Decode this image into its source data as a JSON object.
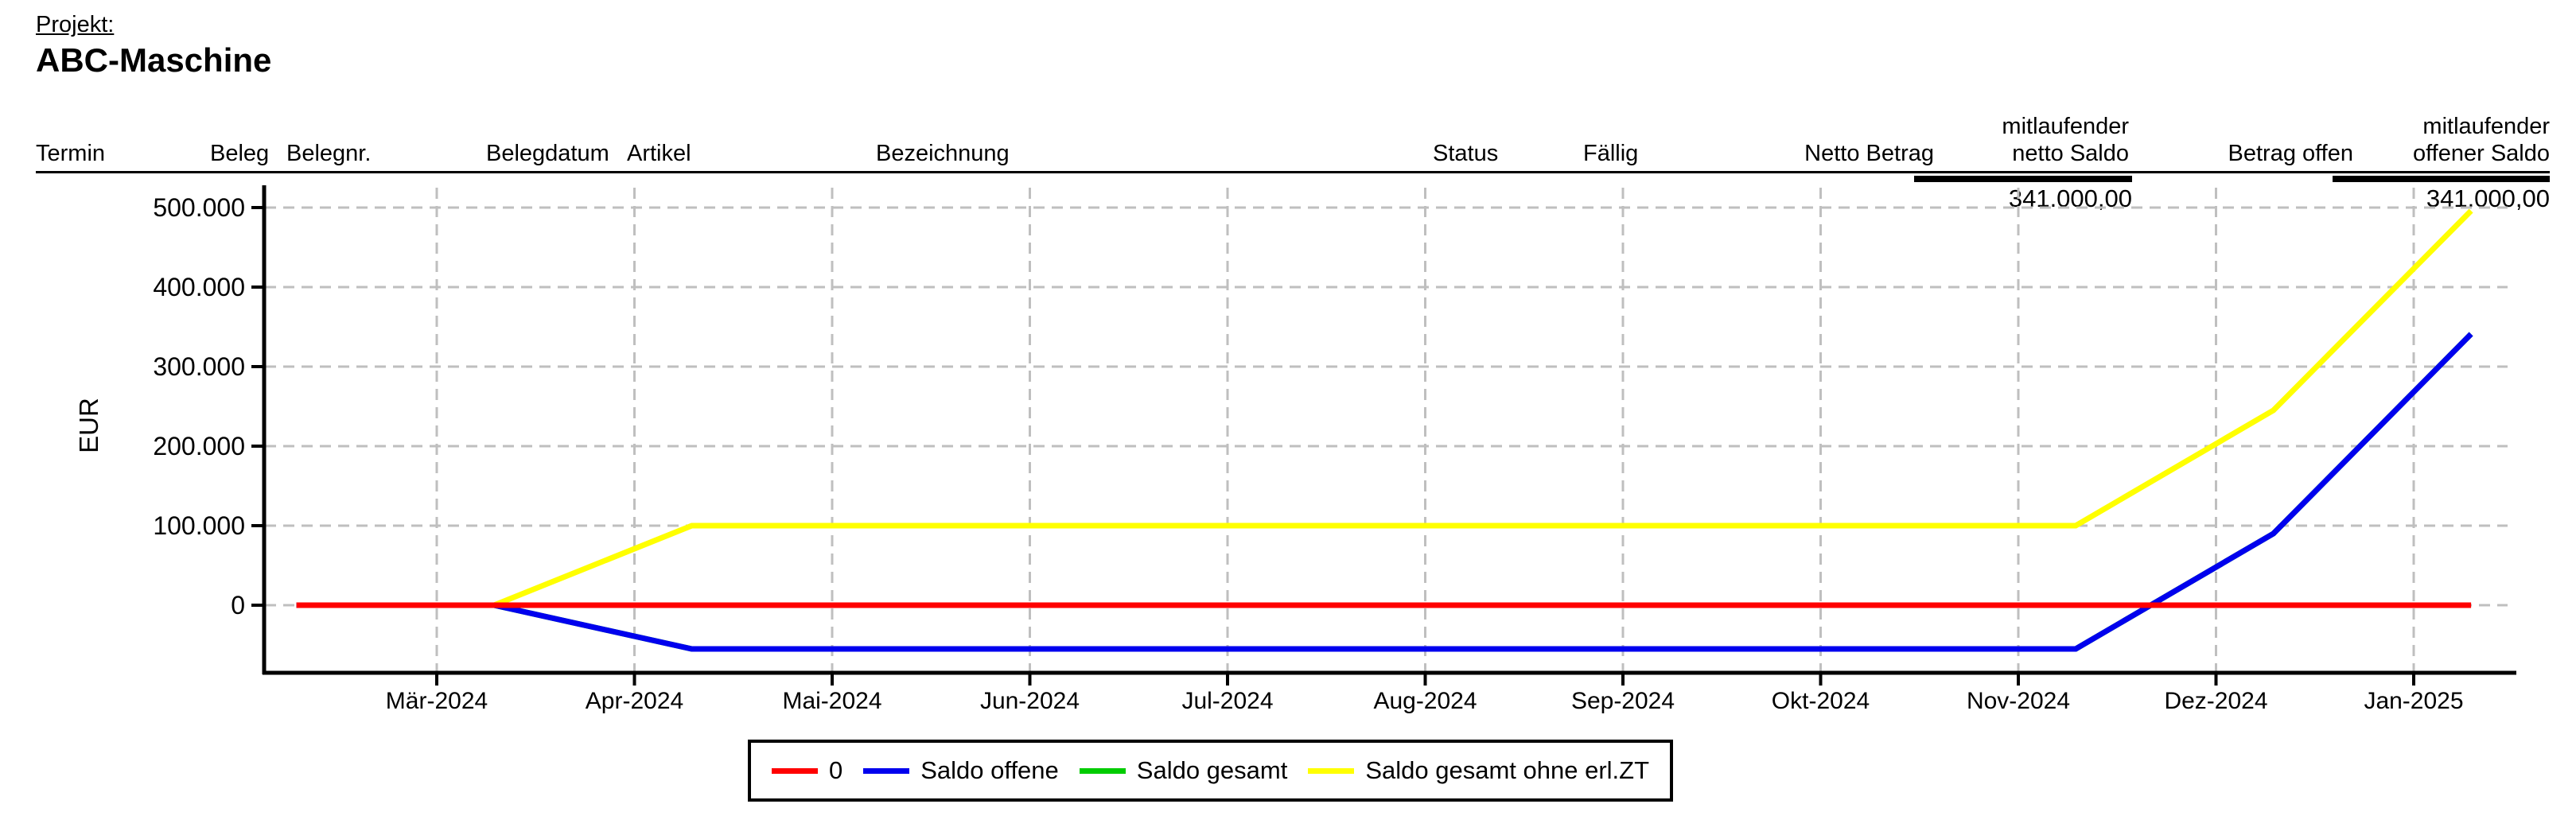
{
  "header": {
    "project_label": "Projekt:",
    "project_name": "ABC-Maschine"
  },
  "table": {
    "columns": [
      {
        "label": "Termin"
      },
      {
        "label": "Beleg"
      },
      {
        "label": "Belegnr."
      },
      {
        "label": "Belegdatum"
      },
      {
        "label": "Artikel"
      },
      {
        "label": "Bezeichnung"
      },
      {
        "label": "Status"
      },
      {
        "label": "Fällig"
      },
      {
        "label": "Netto Betrag"
      },
      {
        "label": "mitlaufender netto Saldo",
        "line1": "mitlaufender",
        "line2": "netto Saldo"
      },
      {
        "label": "Betrag offen"
      },
      {
        "label": "mitlaufender offener Saldo",
        "line1": "mitlaufender",
        "line2": "offener Saldo"
      }
    ],
    "totals": {
      "mitlaufender_netto_saldo": "341.000,00",
      "mitlaufender_offener_saldo": "341.000,00"
    }
  },
  "chart_data": {
    "type": "line",
    "title": "",
    "xlabel": "",
    "ylabel": "EUR",
    "grid": "dashed",
    "legend_position": "bottom",
    "ylim": [
      -85000,
      528000
    ],
    "x_tick_labels": [
      "Mär-2024",
      "Apr-2024",
      "Mai-2024",
      "Jun-2024",
      "Jul-2024",
      "Aug-2024",
      "Sep-2024",
      "Okt-2024",
      "Nov-2024",
      "Dez-2024",
      "Jan-2025"
    ],
    "y_ticks": [
      {
        "value": 0,
        "label": "0"
      },
      {
        "value": 100000,
        "label": "100.000"
      },
      {
        "value": 200000,
        "label": "200.000"
      },
      {
        "value": 300000,
        "label": "300.000"
      },
      {
        "value": 400000,
        "label": "400.000"
      },
      {
        "value": 500000,
        "label": "500.000"
      }
    ],
    "series": [
      {
        "name": "0",
        "color": "#ff0000",
        "points": [
          {
            "date": "2024-02-10",
            "value": 0
          },
          {
            "date": "2025-01-10",
            "value": 0
          }
        ]
      },
      {
        "name": "Saldo offene",
        "color": "#0000ee",
        "points": [
          {
            "date": "2024-02-10",
            "value": 0
          },
          {
            "date": "2024-03-10",
            "value": 0
          },
          {
            "date": "2024-04-10",
            "value": -55000
          },
          {
            "date": "2024-11-10",
            "value": -55000
          },
          {
            "date": "2024-12-10",
            "value": 90000
          },
          {
            "date": "2025-01-10",
            "value": 341000
          }
        ]
      },
      {
        "name": "Saldo gesamt",
        "color": "#00cc00",
        "hidden_behind": "Saldo offene",
        "points": [
          {
            "date": "2024-02-10",
            "value": 0
          },
          {
            "date": "2024-03-10",
            "value": 0
          },
          {
            "date": "2024-04-10",
            "value": -55000
          },
          {
            "date": "2024-11-10",
            "value": -55000
          },
          {
            "date": "2024-12-10",
            "value": 90000
          },
          {
            "date": "2025-01-10",
            "value": 341000
          }
        ]
      },
      {
        "name": "Saldo gesamt ohne erl.ZT",
        "color": "#ffff00",
        "points": [
          {
            "date": "2024-02-10",
            "value": 0
          },
          {
            "date": "2024-03-10",
            "value": 0
          },
          {
            "date": "2024-04-10",
            "value": 100000
          },
          {
            "date": "2024-11-10",
            "value": 100000
          },
          {
            "date": "2024-12-10",
            "value": 245000
          },
          {
            "date": "2025-01-10",
            "value": 496000
          }
        ]
      }
    ]
  },
  "legend": {
    "items": [
      {
        "label": "0",
        "color": "#ff0000"
      },
      {
        "label": "Saldo offene",
        "color": "#0000ee"
      },
      {
        "label": "Saldo gesamt",
        "color": "#00cc00"
      },
      {
        "label": "Saldo gesamt ohne erl.ZT",
        "color": "#ffff00"
      }
    ]
  }
}
